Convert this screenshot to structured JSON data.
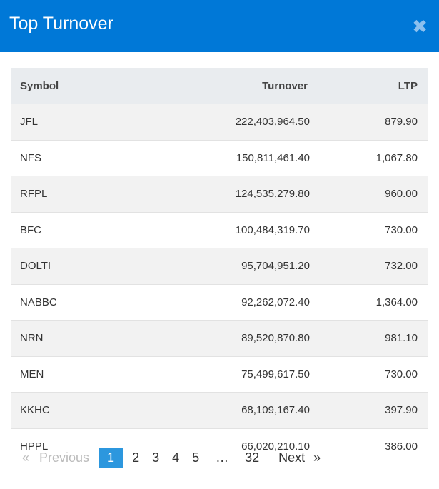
{
  "header": {
    "title": "Top Turnover",
    "close_icon": "close-icon",
    "color": "#0078d7"
  },
  "table": {
    "columns": [
      "Symbol",
      "Turnover",
      "LTP"
    ],
    "rows": [
      [
        "JFL",
        "222,403,964.50",
        "879.90"
      ],
      [
        "NFS",
        "150,811,461.40",
        "1,067.80"
      ],
      [
        "RFPL",
        "124,535,279.80",
        "960.00"
      ],
      [
        "BFC",
        "100,484,319.70",
        "730.00"
      ],
      [
        "DOLTI",
        "95,704,951.20",
        "732.00"
      ],
      [
        "NABBC",
        "92,262,072.40",
        "1,364.00"
      ],
      [
        "NRN",
        "89,520,870.80",
        "981.10"
      ],
      [
        "MEN",
        "75,499,617.50",
        "730.00"
      ],
      [
        "KKHC",
        "68,109,167.40",
        "397.90"
      ],
      [
        "HPPL",
        "66,020,210.10",
        "386.00"
      ]
    ]
  },
  "pagination": {
    "prev_arrow": "«",
    "prev": "Previous",
    "pages": [
      "1",
      "2",
      "3",
      "4",
      "5",
      "…",
      "32"
    ],
    "current": "1",
    "next": "Next",
    "next_arrow": "»"
  }
}
